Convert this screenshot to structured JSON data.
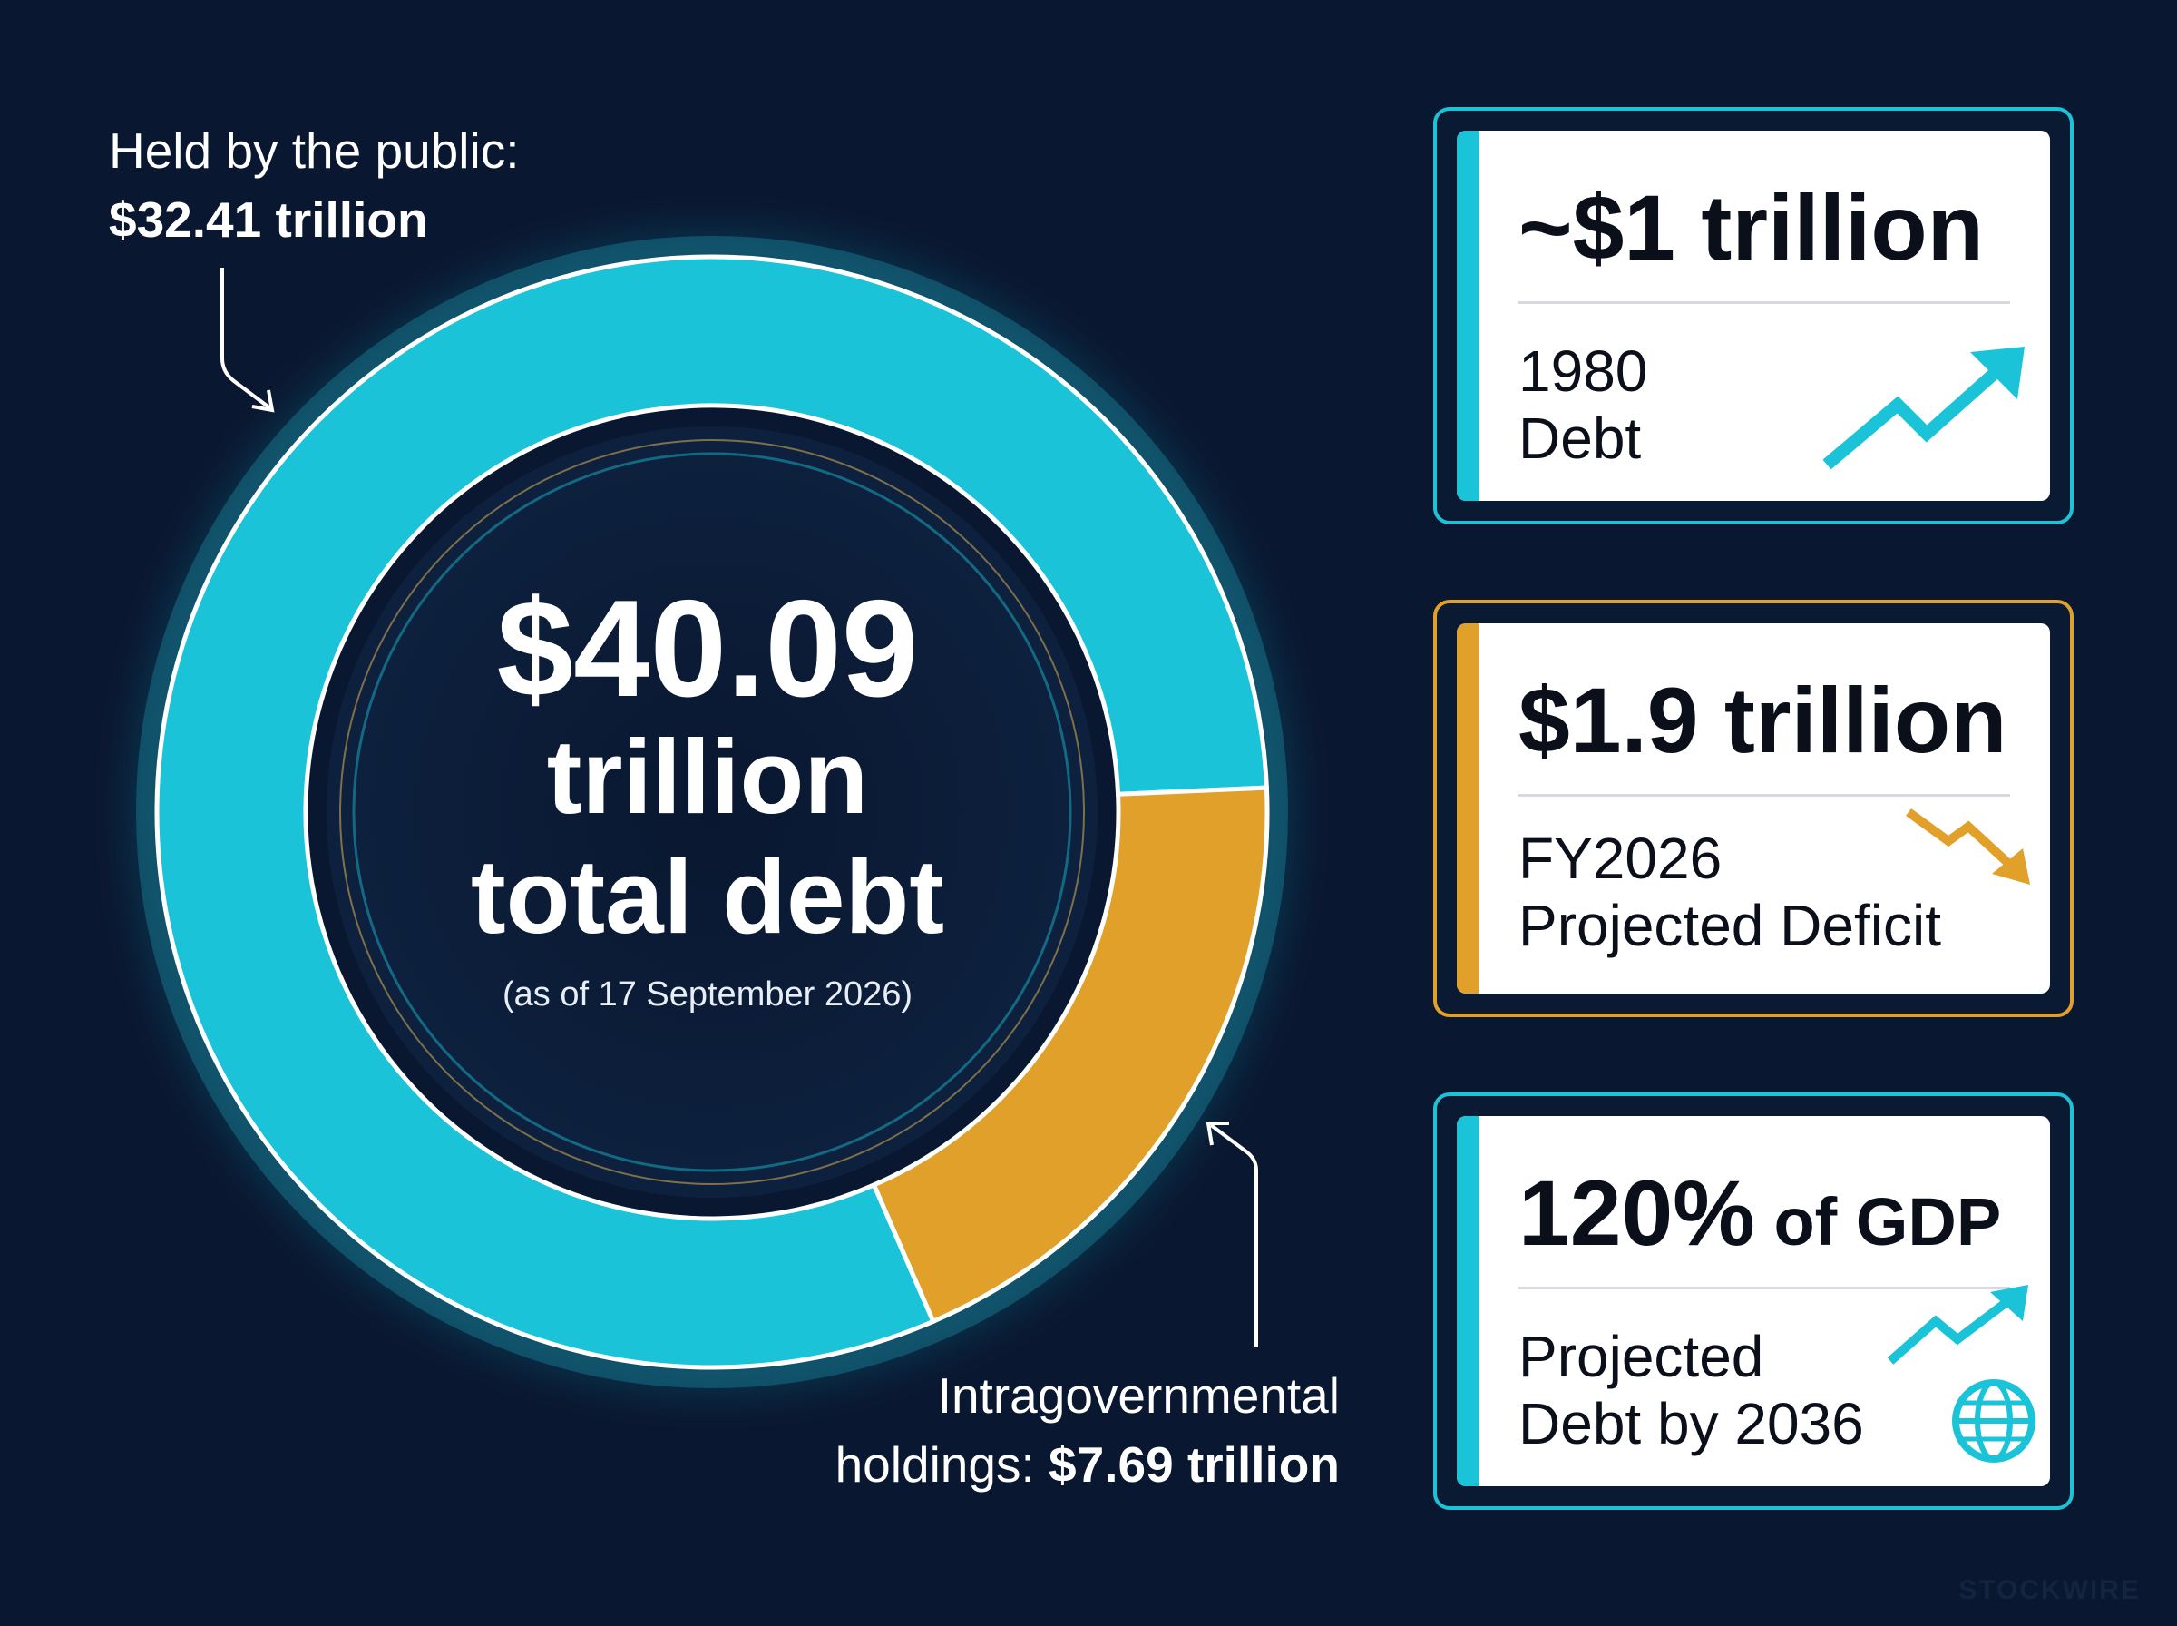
{
  "colors": {
    "background": "#0a1730",
    "public": "#1bc3d8",
    "intragovernmental": "#e0a02a",
    "card_bg": "#ffffff",
    "card_text": "#0b0f1a"
  },
  "chart_data": {
    "type": "pie",
    "variant": "donut",
    "categories": [
      "Held by the public",
      "Intragovernmental holdings"
    ],
    "values": [
      32.41,
      7.69
    ],
    "unit": "trillion",
    "colors": [
      "#1bc3d8",
      "#e0a02a"
    ],
    "total": {
      "amount": "$40.09",
      "unit": "trillion",
      "label": "total debt",
      "date": "(as of 17 September 2026)"
    }
  },
  "labels": {
    "public": {
      "prefix": "Held by the public:",
      "value": "$32.41 trillion"
    },
    "intragovernmental": {
      "line1": "Intragovernmental",
      "line2_prefix": "holdings: ",
      "value": "$7.69 trillion"
    }
  },
  "cards": [
    {
      "value": "~$1 trillion",
      "label_line1": "1980",
      "label_line2": "Debt",
      "icon": "trend-up-icon",
      "accent": "#1bc3d8"
    },
    {
      "value": "$1.9 trillion",
      "label_line1": "FY2026",
      "label_line2": "Projected Deficit",
      "icon": "trend-down-icon",
      "accent": "#e0a02a"
    },
    {
      "value_main": "120%",
      "value_suffix": " of GDP",
      "label_line1": "Projected",
      "label_line2": "Debt by 2036",
      "icon": "trend-up-globe-icon",
      "accent": "#1bc3d8"
    }
  ],
  "watermark": "STOCKWIRE"
}
